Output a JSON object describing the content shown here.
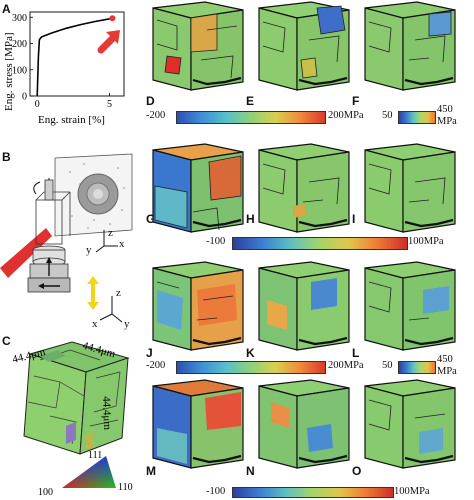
{
  "panels": {
    "A": "A",
    "B": "B",
    "C": "C",
    "D": "D",
    "E": "E",
    "F": "F",
    "G": "G",
    "H": "H",
    "I": "I",
    "J": "J",
    "K": "K",
    "L": "L",
    "M": "M",
    "N": "N",
    "O": "O"
  },
  "chart_data": {
    "type": "line",
    "xlabel": "Eng. strain [%]",
    "ylabel": "Eng. stress [MPa]",
    "xlim": [
      -0.5,
      6
    ],
    "ylim": [
      0,
      320
    ],
    "xticks": [
      "0",
      "5"
    ],
    "yticks": [
      "0",
      "100",
      "200",
      "300"
    ],
    "series": [
      {
        "x": [
          0,
          0.08,
          0.15,
          0.3,
          1,
          2,
          3,
          4,
          5.2
        ],
        "y": [
          0,
          150,
          215,
          225,
          240,
          258,
          272,
          284,
          296
        ]
      }
    ],
    "marker": {
      "x": 5.2,
      "y": 296,
      "color": "#e53935"
    }
  },
  "colorbars": {
    "row1": {
      "min": "-200",
      "max": "200MPa",
      "right_min": "50",
      "right_max": "450",
      "right_unit": "MPa"
    },
    "row2": {
      "min": "-100",
      "max": "100MPa"
    },
    "row3": {
      "min": "-200",
      "max": "200MPa",
      "right_min": "50",
      "right_max": "450",
      "right_unit": "MPa"
    },
    "row4": {
      "min": "-100",
      "max": "100MPa"
    }
  },
  "dims": {
    "a": "44.4μm",
    "b": "44.4μm",
    "c": "44.4μm"
  },
  "axes_labels": {
    "x": "x",
    "y": "y",
    "z": "z"
  },
  "ipf": {
    "top": "111",
    "left": "100",
    "right": "110"
  },
  "colors": {
    "face_green": "#8fcf72",
    "accent_red": "#e53935",
    "arrow_yellow": "#f2d51a"
  }
}
